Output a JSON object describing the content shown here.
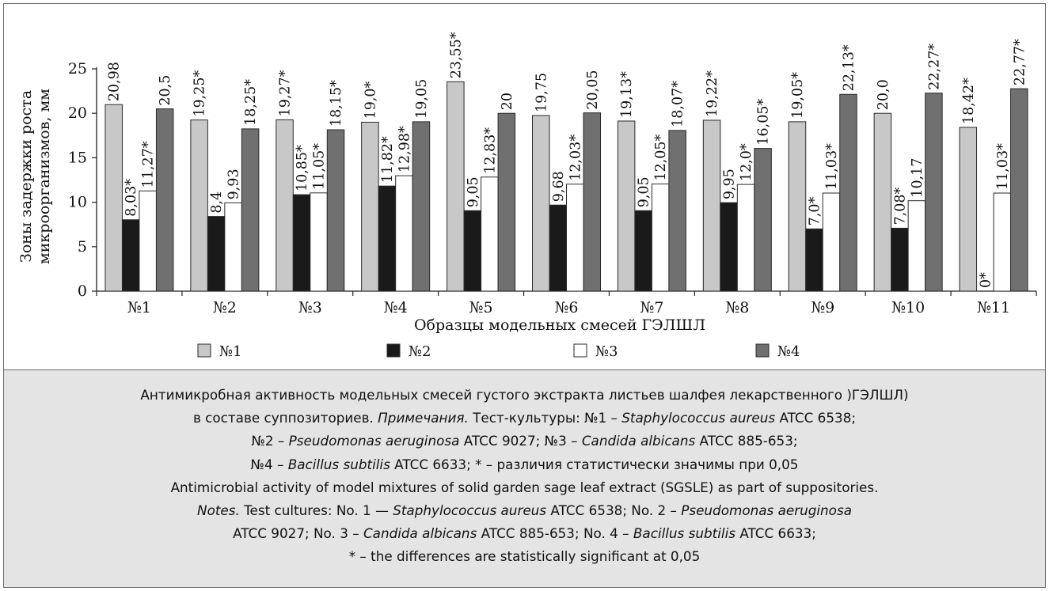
{
  "chart_data": {
    "type": "bar",
    "title": "",
    "xlabel": "Образцы модельных смесей ГЭЛШЛ",
    "ylabel": [
      "Зоны задержки роста",
      "микроорганизмов, мм"
    ],
    "ylim": [
      0,
      25
    ],
    "yticks": [
      "0",
      "5",
      "10",
      "15",
      "20",
      "25"
    ],
    "ytick_values": [
      0,
      5,
      10,
      15,
      20,
      25
    ],
    "grid": false,
    "legend_position": "bottom",
    "categories": [
      "№1",
      "№2",
      "№3",
      "№4",
      "№5",
      "№6",
      "№7",
      "№8",
      "№9",
      "№10",
      "№11"
    ],
    "series": [
      {
        "name": "№1",
        "color": "#c8c8c8",
        "values": [
          20.98,
          19.25,
          19.27,
          19.0,
          23.55,
          19.75,
          19.13,
          19.22,
          19.05,
          20.0,
          18.42
        ],
        "labels": [
          "20,98",
          "19,25*",
          "19,27*",
          "19,0*",
          "23,55*",
          "19,75",
          "19,13*",
          "19,22*",
          "19,05*",
          "20,0",
          "18,42*"
        ]
      },
      {
        "name": "№2",
        "color": "#1a1a1a",
        "values": [
          8.03,
          8.4,
          10.85,
          11.82,
          9.05,
          9.68,
          9.05,
          9.95,
          7.0,
          7.08,
          0
        ],
        "labels": [
          "8,03*",
          "8,4",
          "10,85*",
          "11,82*",
          "9,05",
          "9,68",
          "9,05",
          "9,95",
          "7,0*",
          "7,08*",
          "0*"
        ]
      },
      {
        "name": "№3",
        "color": "#ffffff",
        "values": [
          11.27,
          9.93,
          11.05,
          12.98,
          12.83,
          12.03,
          12.05,
          12.0,
          11.03,
          10.17,
          11.03
        ],
        "labels": [
          "11,27*",
          "9,93",
          "11,05*",
          "12,98*",
          "12,83*",
          "12,03*",
          "12,05*",
          "12,0*",
          "11,03*",
          "10,17",
          "11,03*"
        ]
      },
      {
        "name": "№4",
        "color": "#707070",
        "values": [
          20.5,
          18.25,
          18.15,
          19.05,
          20.0,
          20.05,
          18.07,
          16.05,
          22.13,
          22.27,
          22.77
        ],
        "labels": [
          "20,5",
          "18,25*",
          "18,15*",
          "19,05",
          "20",
          "20,05",
          "18,07*",
          "16,05*",
          "22,13*",
          "22,27*",
          "22,77*"
        ]
      }
    ]
  },
  "caption": {
    "ru_line1": "Антимикробная активность модельных смесей густого экстракта листьев шалфея лекарственного )ГЭЛШЛ)",
    "ru_line2_a": "в составе суппозиториев. ",
    "ru_line2_b": "Примечания.",
    "ru_line2_c": " Тест-культуры: №1 – ",
    "ru_line2_d": "Staphylococcus aureus",
    "ru_line2_e": " ATCC 6538;",
    "ru_line3_a": "№2 – ",
    "ru_line3_b": "Pseudomonas aeruginosa",
    "ru_line3_c": " ATCC 9027; №3 – ",
    "ru_line3_d": "Candida albicans",
    "ru_line3_e": " ATCC 885-653;",
    "ru_line4_a": "№4 – ",
    "ru_line4_b": "Bacillus subtilis",
    "ru_line4_c": " ATCC 6633; * – различия статистически значимы при 0,05",
    "en_line1": "Antimicrobial activity of model mixtures of solid garden sage leaf extract (SGSLE) as part of suppositories.",
    "en_line2_a": "Notes.",
    "en_line2_b": " Test cultures: No. 1 — ",
    "en_line2_c": "Staphylococcus aureus",
    "en_line2_d": " ATCC 6538; No. 2 – ",
    "en_line2_e": "Pseudomonas aeruginosa",
    "en_line3_a": "ATCC 9027; No. 3 – ",
    "en_line3_b": "Candida albicans",
    "en_line3_c": " ATCC 885-653; No. 4 – ",
    "en_line3_d": "Bacillus subtilis",
    "en_line3_e": " ATCC 6633;",
    "en_line4": "* – the differences are statistically significant at 0,05"
  }
}
